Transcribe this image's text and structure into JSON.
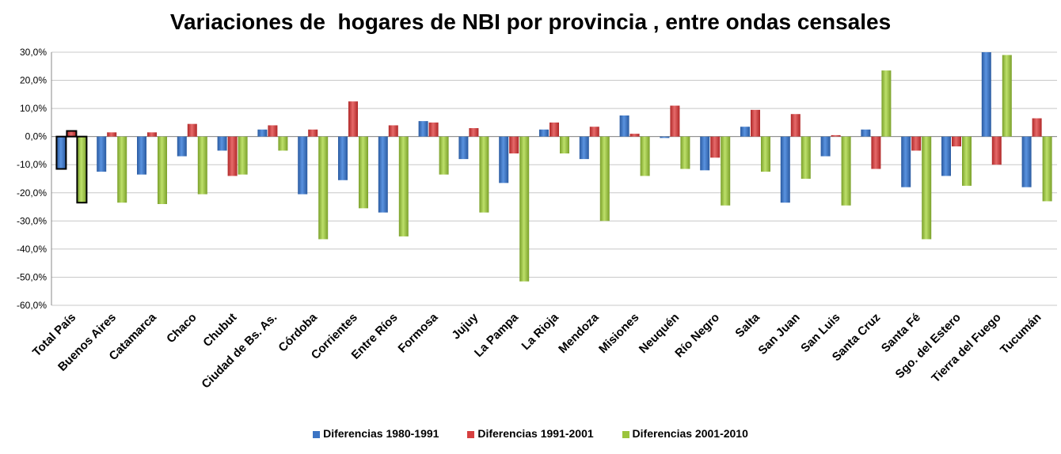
{
  "chart_data": {
    "type": "bar",
    "title": "Variaciones de  hogares de NBI por provincia , entre ondas censales",
    "xlabel": "",
    "ylabel": "",
    "ylim": [
      -60,
      30
    ],
    "ytick_values": [
      30,
      20,
      10,
      0,
      -10,
      -20,
      -30,
      -40,
      -50,
      -60
    ],
    "ytick_labels": [
      "30,0%",
      "20,0%",
      "10,0%",
      "0,0%",
      "-10,0%",
      "-20,0%",
      "-30,0%",
      "-40,0%",
      "-50,0%",
      "-60,0%"
    ],
    "categories": [
      "Total País",
      "Buenos Aires",
      "Catamarca",
      "Chaco",
      "Chubut",
      "Ciudad de Bs. As.",
      "Córdoba",
      "Corrientes",
      "Entre Ríos",
      "Formosa",
      "Jujuy",
      "La Pampa",
      "La Rioja",
      "Mendoza",
      "Misiones",
      "Neuquén",
      "Río Negro",
      "Salta",
      "San Juan",
      "San Luis",
      "Santa Cruz",
      "Santa Fé",
      "Sgo. del Estero",
      "Tierra del Fuego",
      "Tucumán"
    ],
    "series": [
      {
        "name": "Diferencias 1980-1991",
        "color": "#3b74c4",
        "values": [
          -11.5,
          -12.5,
          -13.5,
          -7,
          -5,
          2.5,
          -20.5,
          -15.5,
          -27,
          5.5,
          -8,
          -16.5,
          2.5,
          -8,
          7.5,
          -0.5,
          -12,
          3.5,
          -23.5,
          -7,
          2.5,
          -18,
          -14,
          30,
          -18
        ]
      },
      {
        "name": "Diferencias 1991-2001",
        "color": "#d64040",
        "values": [
          2,
          1.5,
          1.5,
          4.5,
          -14,
          4,
          2.5,
          12.5,
          4,
          5,
          3,
          -6,
          5,
          3.5,
          1,
          11,
          -7.5,
          9.5,
          8,
          0.5,
          -11.5,
          -5,
          -3.5,
          -10,
          6.5
        ]
      },
      {
        "name": "Diferencias 2001-2010",
        "color": "#9bc43c",
        "values": [
          -23.5,
          -23.5,
          -24,
          -20.5,
          -13.5,
          -5,
          -36.5,
          -25.5,
          -35.5,
          -13.5,
          -27,
          -51.5,
          -6,
          -30,
          -14,
          -11.5,
          -24.5,
          -12.5,
          -15,
          -24.5,
          23.5,
          -36.5,
          -17.5,
          29,
          -23
        ]
      }
    ],
    "highlighted_category": "Total País",
    "legend_position": "bottom",
    "grid": true
  }
}
